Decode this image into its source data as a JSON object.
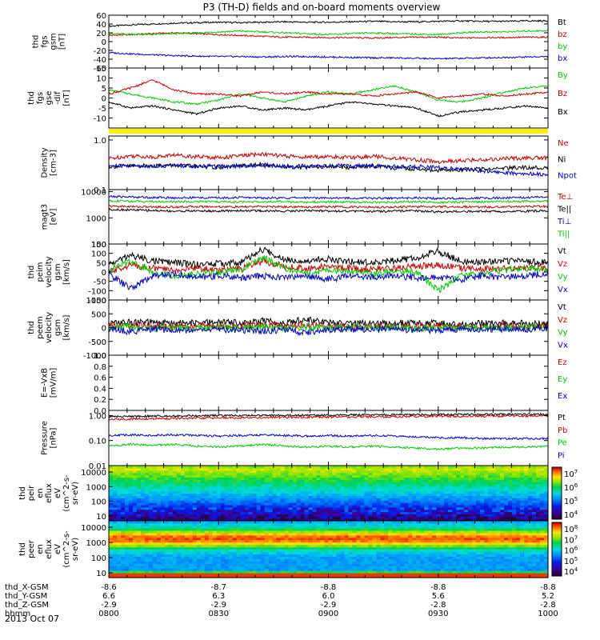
{
  "title": "P3 (TH-D) fields and on-board moments overview",
  "date_label": "2013 Oct 07",
  "chart_data": {
    "type": "line",
    "x_ticks": [
      {
        "t": 0,
        "labels": [
          "-8.6",
          "6.6",
          "-2.9",
          "0800"
        ]
      },
      {
        "t": 30,
        "labels": [
          "-8.7",
          "6.3",
          "-2.9",
          "0830"
        ]
      },
      {
        "t": 60,
        "labels": [
          "-8.8",
          "6.0",
          "-2.9",
          "0900"
        ]
      },
      {
        "t": 90,
        "labels": [
          "-8.8",
          "5.6",
          "-2.8",
          "0930"
        ]
      },
      {
        "t": 120,
        "labels": [
          "-8.8",
          "5.2",
          "-2.8",
          "1000"
        ]
      }
    ],
    "x_label_rows": [
      "thd_X-GSM",
      "thd_Y-GSM",
      "thd_Z-GSM",
      "hhmm"
    ],
    "panels": [
      {
        "id": "fgs-gsm",
        "ylabel": [
          "thd",
          "fgs",
          "gsm",
          "[nT]"
        ],
        "scale": "linear",
        "ylim": [
          -60,
          60
        ],
        "ticks": [
          "60",
          "40",
          "20",
          "0",
          "-20",
          "-40",
          "-60"
        ],
        "tick_values": [
          60,
          40,
          20,
          0,
          -20,
          -40,
          -60
        ],
        "series": [
          {
            "name": "Bt",
            "color": "#000000",
            "values": [
              35,
              38,
              40,
              42,
              43,
              44,
              43,
              44,
              45,
              44,
              44,
              45,
              46,
              45,
              45,
              46,
              47,
              46,
              46,
              47,
              47
            ]
          },
          {
            "name": "bz",
            "color": "#cc0000",
            "values": [
              14,
              16,
              18,
              20,
              18,
              16,
              14,
              12,
              10,
              10,
              9,
              9,
              8,
              9,
              10,
              10,
              8,
              9,
              9,
              10,
              10
            ]
          },
          {
            "name": "by",
            "color": "#00cc00",
            "values": [
              18,
              17,
              16,
              18,
              20,
              22,
              24,
              22,
              20,
              18,
              16,
              18,
              20,
              18,
              17,
              16,
              20,
              22,
              22,
              24,
              25
            ]
          },
          {
            "name": "bx",
            "color": "#0000cc",
            "values": [
              -25,
              -28,
              -30,
              -32,
              -33,
              -34,
              -34,
              -35,
              -34,
              -34,
              -35,
              -36,
              -37,
              -37,
              -38,
              -39,
              -38,
              -37,
              -36,
              -35,
              -34
            ]
          }
        ]
      },
      {
        "id": "fgs-gse",
        "ylabel": [
          "thd",
          "fgs",
          "gse",
          "-dif",
          "[nT]"
        ],
        "scale": "linear",
        "ylim": [
          -15,
          15
        ],
        "ticks": [
          "15",
          "10",
          "5",
          "0",
          "-5",
          "-10"
        ],
        "tick_values": [
          15,
          10,
          5,
          0,
          -5,
          -10
        ],
        "series": [
          {
            "name": "By",
            "color": "#00cc00",
            "values": [
              4,
              2,
              0,
              -2,
              -3,
              -1,
              2,
              0,
              -2,
              1,
              3,
              2,
              4,
              6,
              3,
              -1,
              -2,
              0,
              3,
              5,
              6
            ]
          },
          {
            "name": "Bz",
            "color": "#cc0000",
            "values": [
              2,
              5,
              9,
              4,
              2,
              2,
              1,
              3,
              2,
              3,
              2,
              2,
              1,
              2,
              3,
              0,
              1,
              2,
              1,
              2,
              3
            ]
          },
          {
            "name": "Bx",
            "color": "#000000",
            "values": [
              -2,
              -5,
              -4,
              -6,
              -8,
              -5,
              -4,
              -6,
              -5,
              -6,
              -4,
              -2,
              -3,
              -4,
              -5,
              -9,
              -7,
              -6,
              -5,
              -4,
              -5
            ]
          }
        ]
      },
      {
        "id": "density",
        "ylabel": [
          "Density",
          "[cm-3]"
        ],
        "scale": "log",
        "ylim": [
          0.1,
          1.2
        ],
        "ticks": [
          "1.0",
          "0.1"
        ],
        "tick_values": [
          1.0,
          0.1
        ],
        "series": [
          {
            "name": "Ne",
            "color": "#cc0000",
            "values": [
              0.42,
              0.48,
              0.45,
              0.5,
              0.46,
              0.44,
              0.48,
              0.52,
              0.47,
              0.45,
              0.46,
              0.44,
              0.47,
              0.43,
              0.4,
              0.36,
              0.38,
              0.4,
              0.42,
              0.43,
              0.44
            ]
          },
          {
            "name": "Ni",
            "color": "#000000",
            "values": [
              0.29,
              0.3,
              0.3,
              0.31,
              0.29,
              0.28,
              0.3,
              0.32,
              0.29,
              0.28,
              0.29,
              0.28,
              0.3,
              0.27,
              0.26,
              0.24,
              0.25,
              0.26,
              0.27,
              0.28,
              0.28
            ]
          },
          {
            "name": "Npot",
            "color": "#0000cc",
            "values": [
              0.3,
              0.3,
              0.3,
              0.3,
              0.3,
              0.3,
              0.3,
              0.3,
              0.3,
              0.3,
              0.3,
              0.3,
              0.3,
              0.29,
              0.29,
              0.28,
              0.26,
              0.24,
              0.22,
              0.21,
              0.2
            ]
          }
        ]
      },
      {
        "id": "temperature",
        "ylabel": [
          "magt3",
          "[eV]"
        ],
        "scale": "log",
        "ylim": [
          100,
          12000
        ],
        "ticks": [
          "10000",
          "1000",
          "100"
        ],
        "tick_values": [
          10000,
          1000,
          100
        ],
        "series": [
          {
            "name": "Te⊥",
            "color": "#cc0000",
            "values": [
              2800,
              2700,
              2600,
              2600,
              2700,
              2650,
              2600,
              2700,
              2650,
              2600,
              2650,
              2600,
              2550,
              2600,
              2650,
              2700,
              2650,
              2600,
              2650,
              2700,
              2750
            ]
          },
          {
            "name": "Te||",
            "color": "#000000",
            "values": [
              2100,
              2000,
              1900,
              1800,
              1850,
              1800,
              1900,
              1850,
              1800,
              1900,
              1850,
              1800,
              1750,
              1800,
              1850,
              1700,
              1750,
              1800,
              1750,
              1800,
              1850
            ]
          },
          {
            "name": "Ti⊥",
            "color": "#0000cc",
            "values": [
              6500,
              6300,
              6000,
              5800,
              5900,
              5800,
              6000,
              5800,
              5700,
              5900,
              5800,
              5700,
              5600,
              5700,
              5800,
              5500,
              5600,
              5700,
              5800,
              6000,
              6200
            ]
          },
          {
            "name": "Ti||",
            "color": "#00cc00",
            "values": [
              4500,
              4300,
              4200,
              4100,
              4200,
              4100,
              4000,
              4200,
              4100,
              4000,
              4100,
              4000,
              3900,
              4000,
              4100,
              3900,
              4000,
              4100,
              4200,
              4300,
              4400
            ]
          }
        ]
      },
      {
        "id": "peim-velocity",
        "ylabel": [
          "thd",
          "peim",
          "velocity",
          "gsm",
          "[km/s]"
        ],
        "scale": "linear",
        "ylim": [
          -150,
          150
        ],
        "ticks": [
          "150",
          "100",
          "50",
          "0",
          "-50",
          "-100",
          "-150"
        ],
        "tick_values": [
          150,
          100,
          50,
          0,
          -50,
          -100,
          -150
        ],
        "series": [
          {
            "name": "Vt",
            "color": "#000000",
            "values": [
              40,
              90,
              60,
              50,
              40,
              45,
              50,
              120,
              70,
              60,
              70,
              55,
              50,
              60,
              75,
              110,
              60,
              50,
              60,
              55,
              50
            ]
          },
          {
            "name": "Vz",
            "color": "#cc0000",
            "values": [
              0,
              40,
              20,
              10,
              20,
              10,
              15,
              60,
              30,
              20,
              30,
              20,
              15,
              20,
              30,
              40,
              20,
              15,
              20,
              25,
              20
            ]
          },
          {
            "name": "Vy",
            "color": "#00cc00",
            "values": [
              10,
              60,
              0,
              -20,
              -10,
              0,
              10,
              80,
              20,
              -10,
              10,
              0,
              -10,
              10,
              0,
              -100,
              -20,
              -10,
              10,
              20,
              10
            ]
          },
          {
            "name": "Vx",
            "color": "#0000cc",
            "values": [
              -10,
              -90,
              -20,
              -10,
              -30,
              -20,
              -30,
              -20,
              -30,
              -20,
              -40,
              -20,
              -30,
              -20,
              -30,
              -30,
              -40,
              -20,
              -30,
              -20,
              -10
            ]
          }
        ]
      },
      {
        "id": "peem-velocity",
        "ylabel": [
          "thd",
          "peem",
          "velocity",
          "gsm",
          "[km/s]"
        ],
        "scale": "linear",
        "ylim": [
          -1000,
          1000
        ],
        "ticks": [
          "1000",
          "500",
          "0",
          "-500",
          "-1000"
        ],
        "tick_values": [
          1000,
          500,
          0,
          -500,
          -1000
        ],
        "series": [
          {
            "name": "Vt",
            "color": "#000000",
            "values": [
              150,
              200,
              180,
              170,
              160,
              200,
              180,
              250,
              170,
              300,
              180,
              160,
              150,
              170,
              160,
              150,
              140,
              150,
              160,
              150,
              140
            ]
          },
          {
            "name": "Vz",
            "color": "#cc0000",
            "values": [
              50,
              80,
              60,
              40,
              50,
              60,
              40,
              100,
              50,
              80,
              50,
              40,
              30,
              40,
              50,
              40,
              30,
              40,
              50,
              40,
              30
            ]
          },
          {
            "name": "Vy",
            "color": "#00cc00",
            "values": [
              0,
              50,
              -30,
              20,
              -20,
              30,
              -20,
              40,
              -30,
              20,
              -20,
              10,
              -10,
              20,
              -30,
              10,
              -20,
              10,
              -10,
              20,
              -10
            ]
          },
          {
            "name": "Vx",
            "color": "#0000cc",
            "values": [
              -50,
              -150,
              -60,
              -80,
              -100,
              -60,
              -80,
              -120,
              -90,
              -200,
              -80,
              -60,
              -50,
              -70,
              -80,
              -90,
              -60,
              -50,
              -60,
              -50,
              -40
            ]
          }
        ]
      },
      {
        "id": "e-field",
        "ylabel": [
          "E=-VxB",
          "[mV/m]"
        ],
        "scale": "linear",
        "ylim": [
          0,
          1
        ],
        "ticks": [
          "1.0",
          "0.8",
          "0.6",
          "0.4",
          "0.2",
          "0.0"
        ],
        "tick_values": [
          1.0,
          0.8,
          0.6,
          0.4,
          0.2,
          0.0
        ],
        "series": [
          {
            "name": "Ez",
            "color": "#cc0000",
            "values": []
          },
          {
            "name": "Ey",
            "color": "#00cc00",
            "values": []
          },
          {
            "name": "Ex",
            "color": "#0000cc",
            "values": []
          }
        ]
      },
      {
        "id": "pressure",
        "ylabel": [
          "Pressure",
          "[nPa]"
        ],
        "scale": "log",
        "ylim": [
          0.01,
          1.6
        ],
        "ticks": [
          "1.00",
          "0.10",
          "0.01"
        ],
        "tick_values": [
          1.0,
          0.1,
          0.01
        ],
        "series": [
          {
            "name": "Pt",
            "color": "#000000",
            "values": [
              0.9,
              0.92,
              0.95,
              0.97,
              0.98,
              0.99,
              1.0,
              1.01,
              1.02,
              1.03,
              1.04,
              1.05,
              1.06,
              1.07,
              1.08,
              1.09,
              1.1,
              1.1,
              1.11,
              1.11,
              1.12
            ]
          },
          {
            "name": "Pb",
            "color": "#cc0000",
            "values": [
              0.7,
              0.72,
              0.74,
              0.76,
              0.78,
              0.8,
              0.81,
              0.83,
              0.84,
              0.85,
              0.87,
              0.88,
              0.89,
              0.9,
              0.91,
              0.92,
              0.93,
              0.94,
              0.95,
              0.95,
              0.96
            ]
          },
          {
            "name": "Pe",
            "color": "#00cc00",
            "values": [
              0.06,
              0.07,
              0.065,
              0.07,
              0.06,
              0.055,
              0.06,
              0.07,
              0.06,
              0.055,
              0.06,
              0.055,
              0.06,
              0.055,
              0.05,
              0.045,
              0.05,
              0.05,
              0.055,
              0.055,
              0.06
            ]
          },
          {
            "name": "Pi",
            "color": "#0000cc",
            "values": [
              0.16,
              0.17,
              0.16,
              0.17,
              0.16,
              0.15,
              0.16,
              0.17,
              0.16,
              0.15,
              0.16,
              0.15,
              0.16,
              0.15,
              0.14,
              0.13,
              0.13,
              0.12,
              0.12,
              0.12,
              0.12
            ]
          }
        ]
      }
    ],
    "spectrograms": [
      {
        "id": "peir-eflux",
        "type": "heatmap",
        "ylabel": [
          "thd",
          "peir",
          "en",
          "eflux",
          "eV",
          "(cm^2-s-",
          "sr-eV)"
        ],
        "yticks": [
          "10000",
          "1000",
          "100",
          "10"
        ],
        "colorbar_ticks": [
          "10^7",
          "10^6",
          "10^5",
          "10^4"
        ],
        "colorbar_range": [
          3,
          7.5
        ]
      },
      {
        "id": "peer-eflux",
        "type": "heatmap",
        "ylabel": [
          "thd",
          "peer",
          "en",
          "eflux",
          "eV",
          "(cm^2-s-",
          "sr-eV)"
        ],
        "yticks": [
          "10000",
          "1000",
          "100",
          "10"
        ],
        "colorbar_ticks": [
          "10^8",
          "10^7",
          "10^6",
          "10^5",
          "10^4"
        ],
        "colorbar_range": [
          3.5,
          8.2
        ]
      }
    ]
  }
}
